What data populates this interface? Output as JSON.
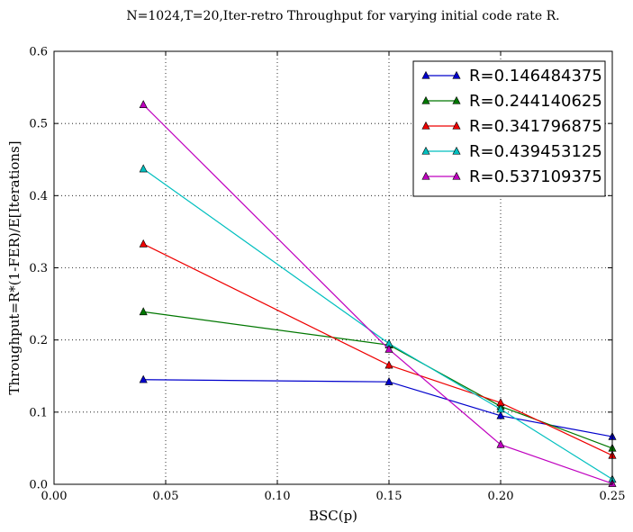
{
  "chart_data": {
    "type": "line",
    "title": "N=1024,T=20,Iter-retro Throughput for varying initial code rate R.",
    "xlabel": "BSC(p)",
    "ylabel": "Throughput=R*(1-FER)/E[Iterations]",
    "xlim": [
      0.0,
      0.25
    ],
    "ylim": [
      0.0,
      0.6
    ],
    "xticks": [
      "0.00",
      "0.05",
      "0.10",
      "0.15",
      "0.20",
      "0.25"
    ],
    "yticks": [
      "0.0",
      "0.1",
      "0.2",
      "0.3",
      "0.4",
      "0.5",
      "0.6"
    ],
    "grid": true,
    "legend_position": "top-right",
    "x": [
      0.04,
      0.15,
      0.2,
      0.25
    ],
    "series": [
      {
        "name": "R=0.146484375",
        "color": "#0000cc",
        "marker": "triangle-up",
        "values": [
          0.145,
          0.142,
          0.095,
          0.066
        ]
      },
      {
        "name": "R=0.244140625",
        "color": "#007700",
        "marker": "triangle-up",
        "values": [
          0.239,
          0.193,
          0.108,
          0.05
        ]
      },
      {
        "name": "R=0.341796875",
        "color": "#ee0000",
        "marker": "triangle-up",
        "values": [
          0.333,
          0.165,
          0.113,
          0.04
        ]
      },
      {
        "name": "R=0.439453125",
        "color": "#00bfbf",
        "marker": "triangle-up",
        "values": [
          0.437,
          0.195,
          0.104,
          0.007
        ]
      },
      {
        "name": "R=0.537109375",
        "color": "#bf00bf",
        "marker": "triangle-up",
        "values": [
          0.526,
          0.187,
          0.055,
          0.001
        ]
      }
    ]
  }
}
